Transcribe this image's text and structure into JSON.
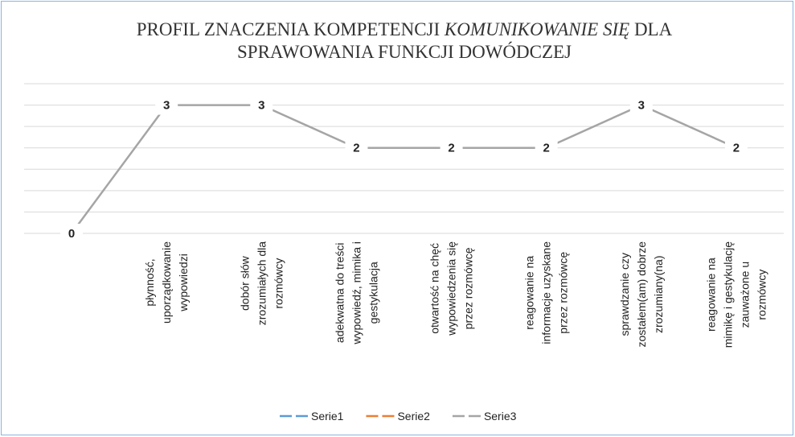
{
  "chart_data": {
    "type": "line",
    "title": [
      "PROFIL ZNACZENIA KOMPETENCJI ",
      "KOMUNIKOWANIE SIĘ",
      " DLA",
      "SPRAWOWANIA FUNKCJI DOWÓDCZEJ"
    ],
    "categories": [
      null,
      [
        "płynność,",
        "uporządkowanie",
        "wypowiedzi"
      ],
      [
        "dobór słów",
        "zrozumiałych dla",
        "rozmówcy"
      ],
      [
        "adekwatna do treści",
        "wypowiedź, mimika i",
        "gestykulacja"
      ],
      [
        "otwartość na chęć",
        "wypowiedzenia się",
        "przez rozmówcę"
      ],
      [
        "reagowanie na",
        "informacje uzyskane",
        "przez rozmówcę"
      ],
      [
        "sprawdzanie czy",
        "zostałem(am) dobrze",
        "zrozumiany(na)"
      ],
      [
        "reagowanie na",
        "mimikę i gestykulację",
        "zauważone u",
        "rozmówcy"
      ]
    ],
    "series": [
      {
        "name": "Serie1",
        "color": "#5b9bd5",
        "values": [
          null,
          null,
          null,
          null,
          null,
          null,
          null,
          null
        ]
      },
      {
        "name": "Serie2",
        "color": "#ed7d31",
        "values": [
          null,
          null,
          null,
          null,
          null,
          null,
          null,
          null
        ]
      },
      {
        "name": "Serie3",
        "color": "#a5a5a5",
        "values": [
          0,
          3,
          3,
          2,
          2,
          2,
          3,
          2
        ]
      }
    ],
    "ylim": [
      0,
      3.5
    ],
    "yticks": [
      0,
      0.5,
      1,
      1.5,
      2,
      2.5,
      3,
      3.5
    ],
    "grid": true,
    "legend": "bottom"
  }
}
